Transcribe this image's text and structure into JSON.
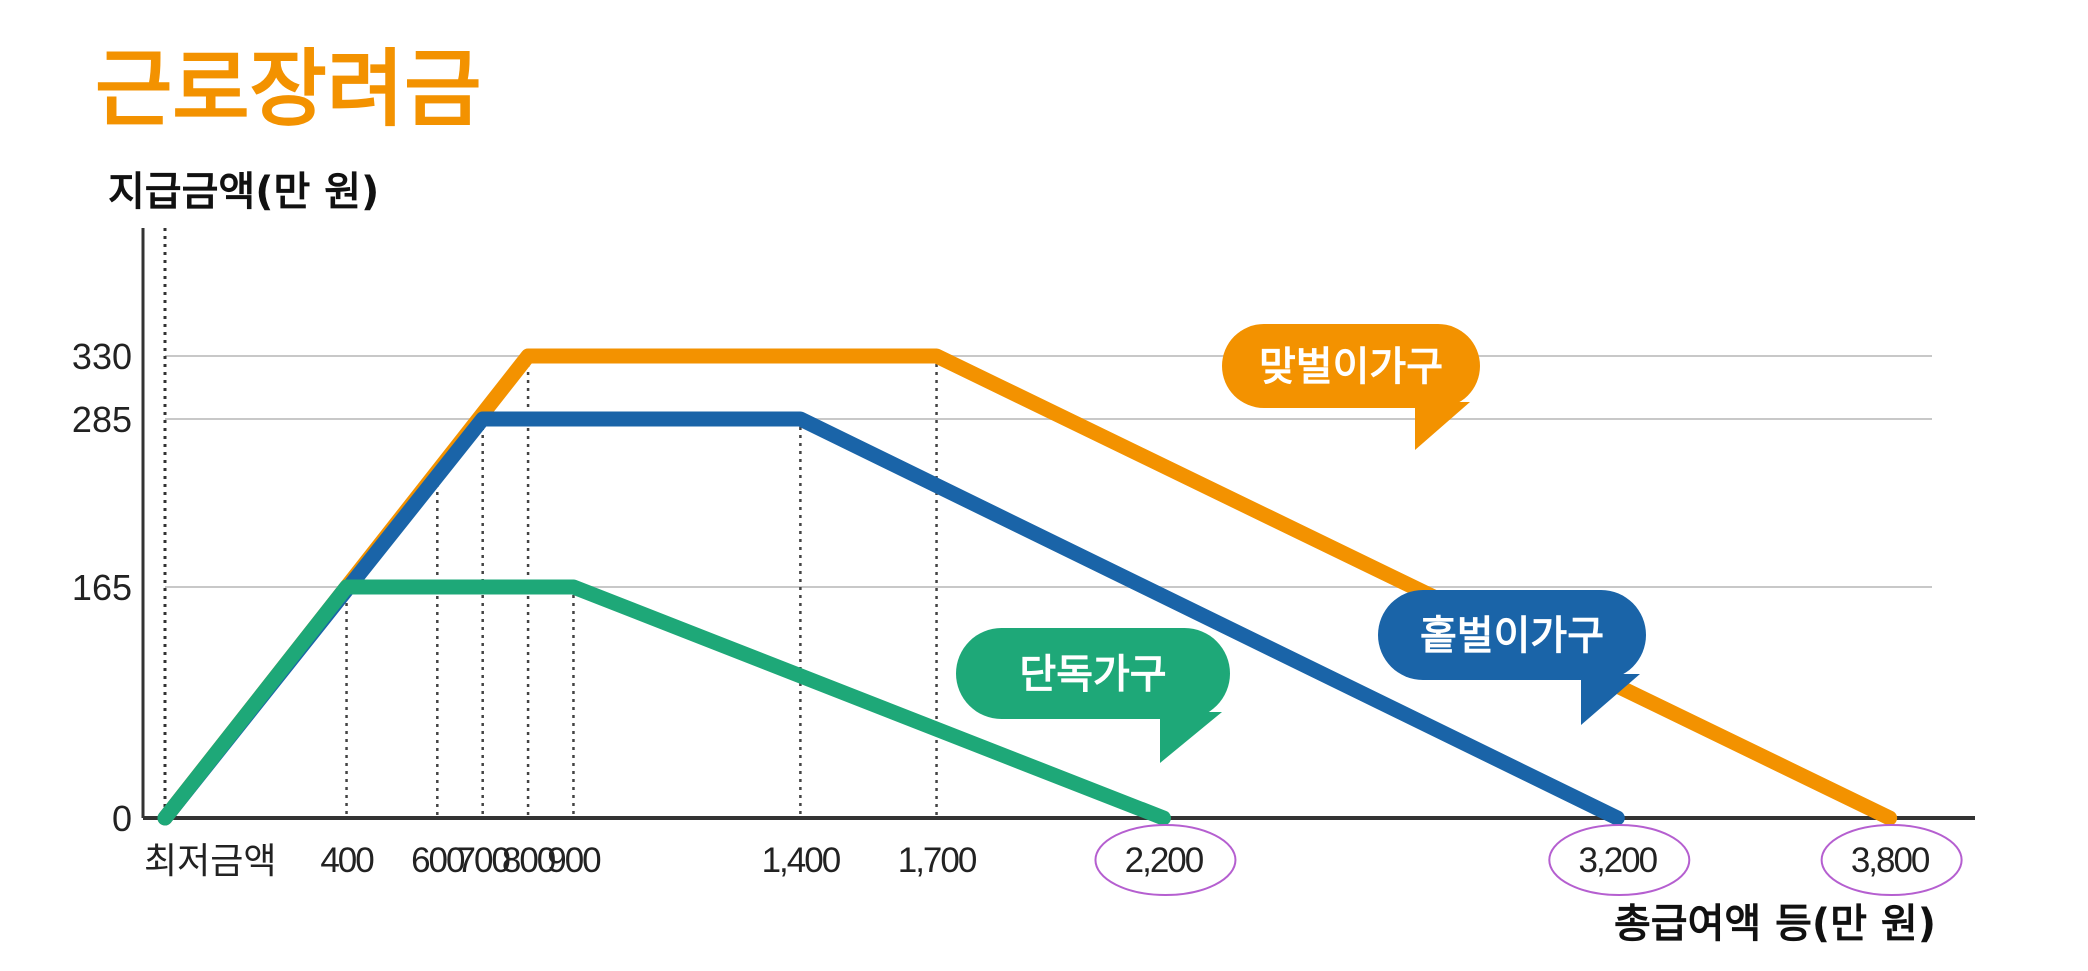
{
  "chart_data": {
    "type": "line",
    "title": "근로장려금",
    "ylabel": "지급금액(만 원)",
    "xlabel": "총급여액 등(만 원)",
    "x_start_label": "최저금액",
    "x_ticks": [
      400,
      600,
      700,
      800,
      900,
      1400,
      1700,
      2200,
      3200,
      3800
    ],
    "x_tick_labels": [
      "400",
      "600",
      "700",
      "800",
      "900",
      "1,400",
      "1,700",
      "2,200",
      "3,200",
      "3,800"
    ],
    "circled_ticks": [
      "2,200",
      "3,200",
      "3,800"
    ],
    "y_ticks": [
      0,
      165,
      285,
      330
    ],
    "y_tick_labels": [
      "0",
      "165",
      "285",
      "330"
    ],
    "xlim": [
      0,
      3900
    ],
    "ylim": [
      0,
      350
    ],
    "grid": "horizontal",
    "series": [
      {
        "name": "맞벌이가구",
        "color": "#f39200",
        "x": [
          0,
          800,
          1700,
          3800
        ],
        "y": [
          0,
          330,
          330,
          0
        ]
      },
      {
        "name": "홑벌이가구",
        "color": "#1a64a8",
        "x": [
          0,
          700,
          1400,
          3200
        ],
        "y": [
          0,
          285,
          285,
          0
        ]
      },
      {
        "name": "단독가구",
        "color": "#1ea878",
        "x": [
          0,
          400,
          900,
          2200
        ],
        "y": [
          0,
          165,
          165,
          0
        ]
      }
    ]
  },
  "colors": {
    "title": "#f39200",
    "axis": "#333333",
    "grid": "#c8c8c8",
    "annotation_circle": "#b55fd0"
  }
}
